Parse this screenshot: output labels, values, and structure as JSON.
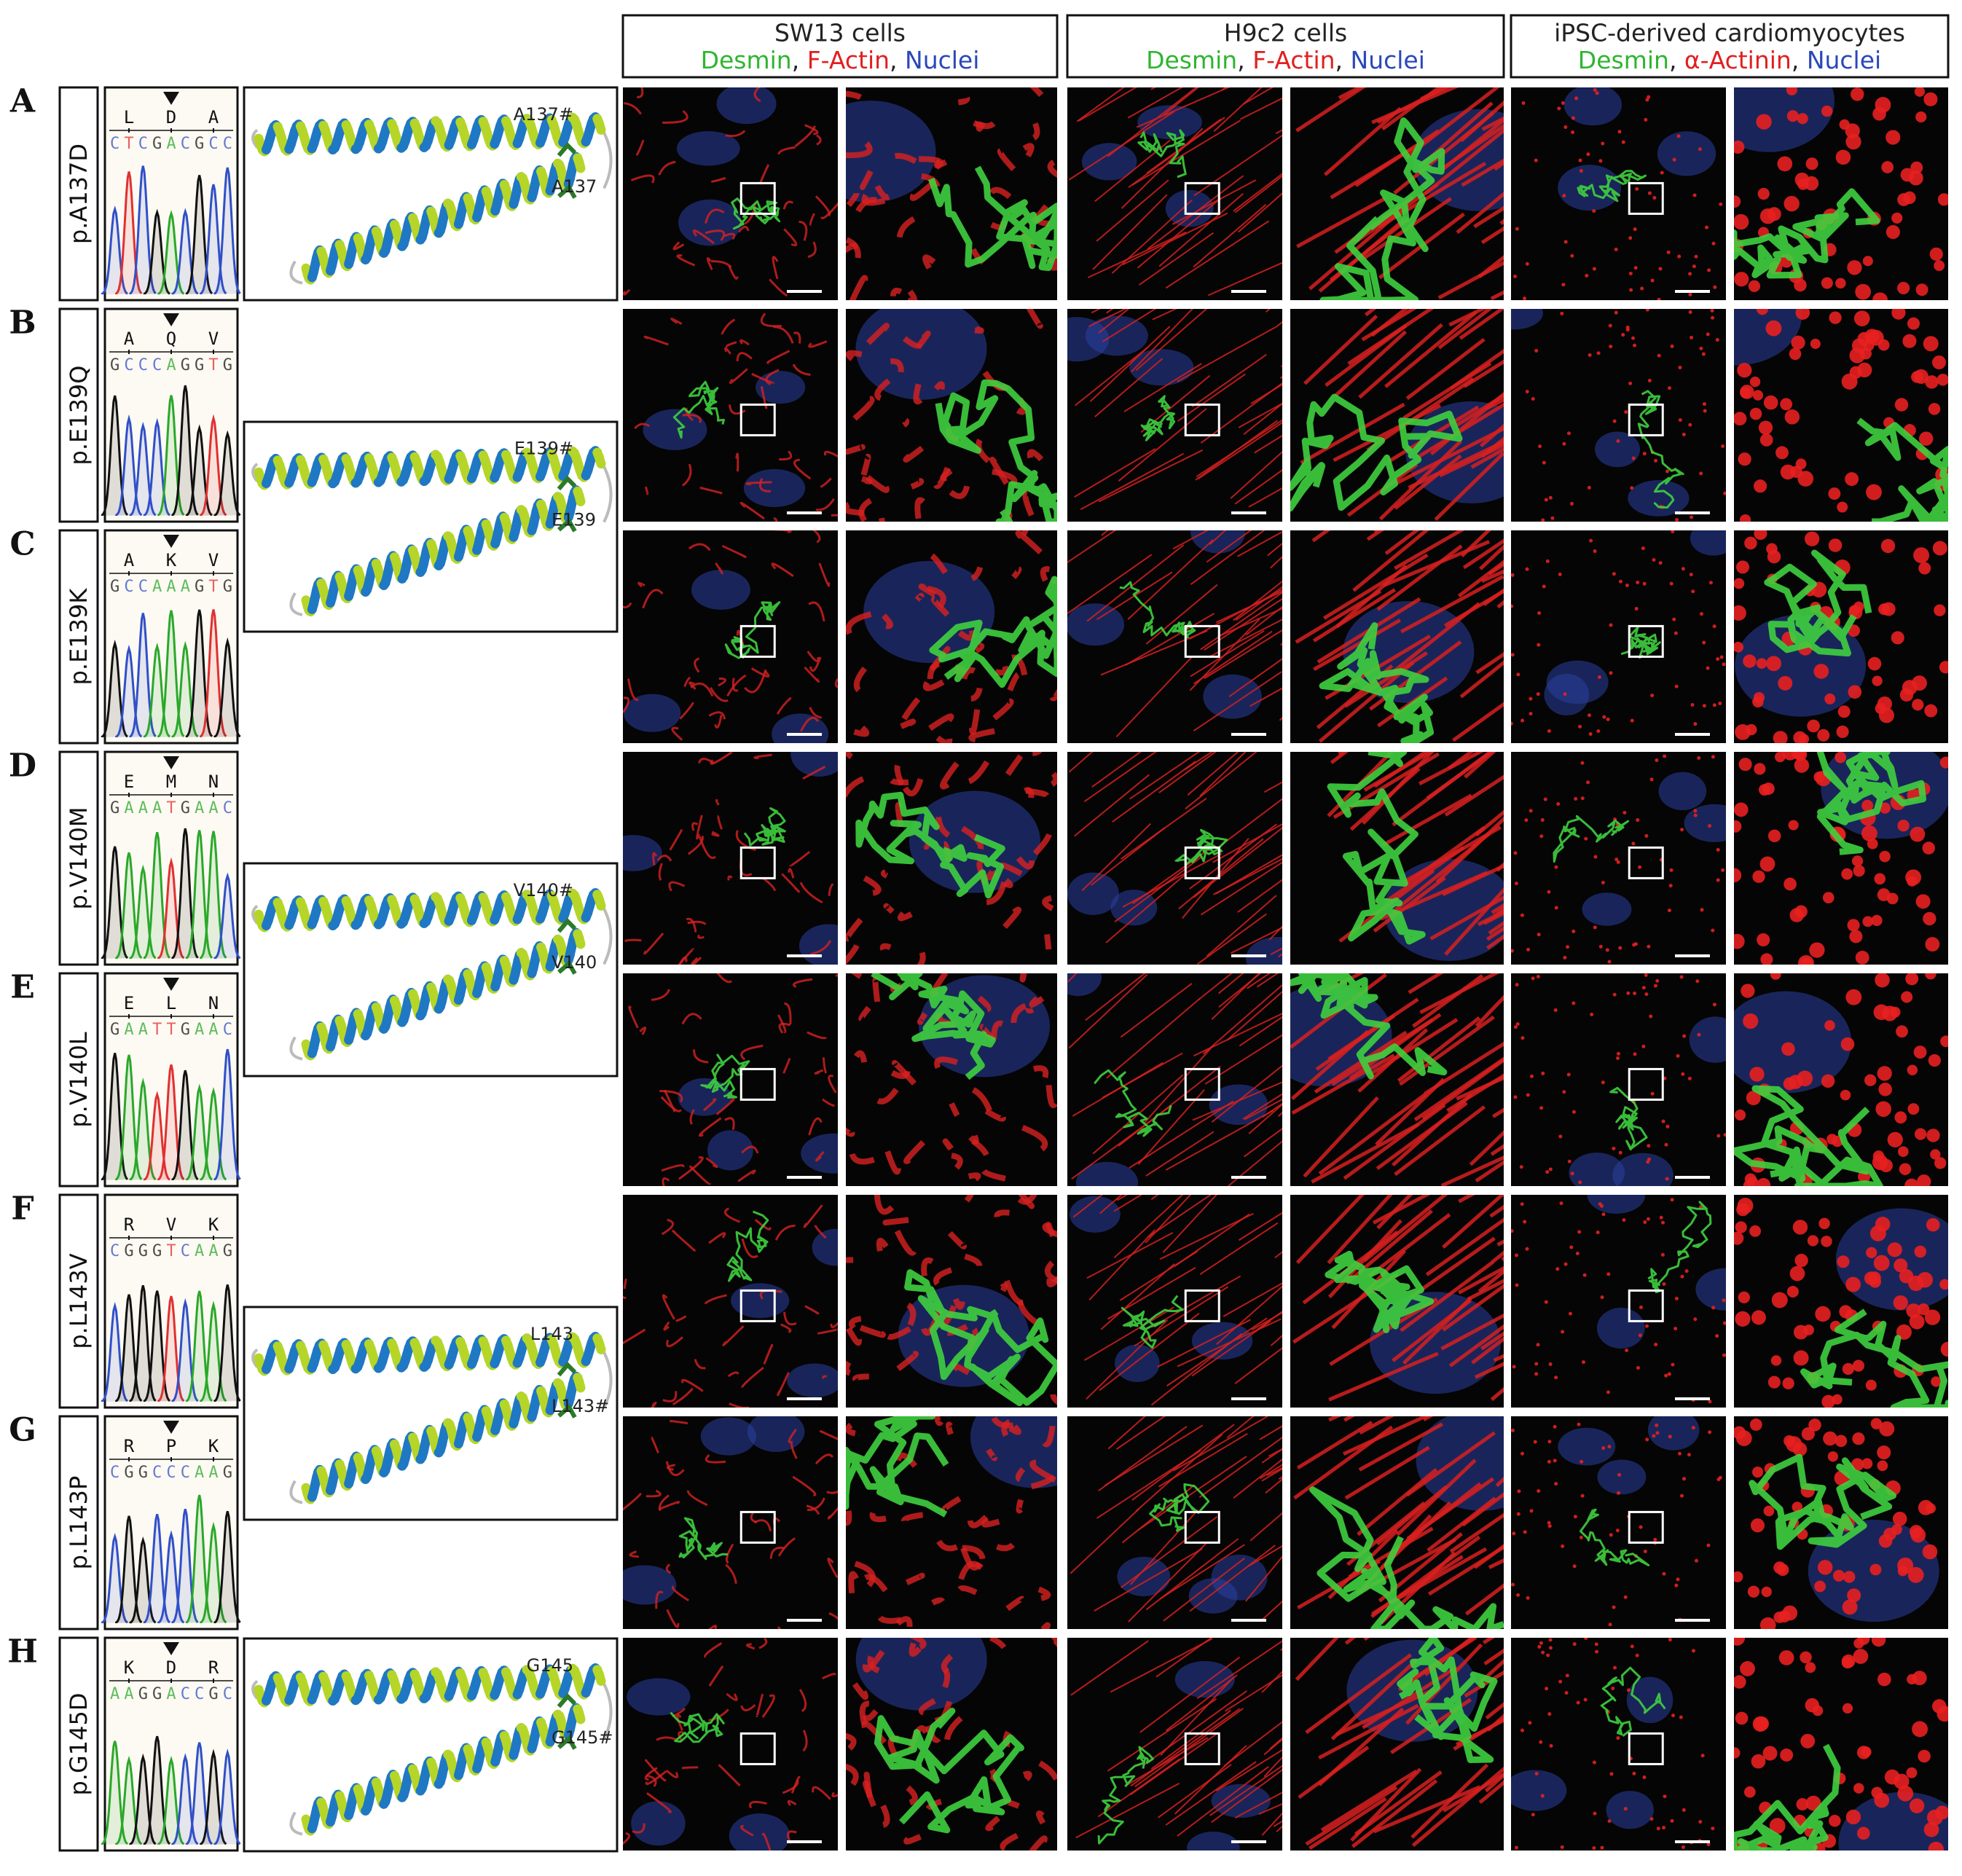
{
  "header": {
    "separator": ", ",
    "columns": [
      {
        "title": "SW13 cells",
        "stains": [
          {
            "name": "Desmin",
            "color": "#2fb52f"
          },
          {
            "name": "F-Actin",
            "color": "#e02020"
          },
          {
            "name": "Nuclei",
            "color": "#2a48b8"
          }
        ]
      },
      {
        "title": "H9c2 cells",
        "stains": [
          {
            "name": "Desmin",
            "color": "#2fb52f"
          },
          {
            "name": "F-Actin",
            "color": "#e02020"
          },
          {
            "name": "Nuclei",
            "color": "#2a48b8"
          }
        ]
      },
      {
        "title": "iPSC-derived cardiomyocytes",
        "stains": [
          {
            "name": "Desmin",
            "color": "#2fb52f"
          },
          {
            "name": "α-Actinin",
            "color": "#e02020"
          },
          {
            "name": "Nuclei",
            "color": "#2a48b8"
          }
        ]
      }
    ]
  },
  "rows": [
    {
      "letter": "A",
      "mutation": "p.A137D",
      "amino_acids": [
        "L",
        "D",
        "A"
      ],
      "sequence": [
        "C",
        "T",
        "C",
        "G",
        "A",
        "C",
        "G",
        "C",
        "C"
      ],
      "marked": true
    },
    {
      "letter": "B",
      "mutation": "p.E139Q",
      "amino_acids": [
        "A",
        "Q",
        "V"
      ],
      "sequence": [
        "G",
        "C",
        "C",
        "C",
        "A",
        "G",
        "G",
        "T",
        "G"
      ],
      "marked": true
    },
    {
      "letter": "C",
      "mutation": "p.E139K",
      "amino_acids": [
        "A",
        "K",
        "V"
      ],
      "sequence": [
        "G",
        "C",
        "C",
        "A",
        "A",
        "A",
        "G",
        "T",
        "G"
      ],
      "marked": true
    },
    {
      "letter": "D",
      "mutation": "p.V140M",
      "amino_acids": [
        "E",
        "M",
        "N"
      ],
      "sequence": [
        "G",
        "A",
        "A",
        "A",
        "T",
        "G",
        "A",
        "A",
        "C"
      ],
      "marked": true
    },
    {
      "letter": "E",
      "mutation": "p.V140L",
      "amino_acids": [
        "E",
        "L",
        "N"
      ],
      "sequence": [
        "G",
        "A",
        "A",
        "T",
        "T",
        "G",
        "A",
        "A",
        "C"
      ],
      "marked": true
    },
    {
      "letter": "F",
      "mutation": "p.L143V",
      "amino_acids": [
        "R",
        "V",
        "K"
      ],
      "sequence": [
        "C",
        "G",
        "G",
        "G",
        "T",
        "C",
        "A",
        "A",
        "G"
      ],
      "marked": false
    },
    {
      "letter": "G",
      "mutation": "p.L143P",
      "amino_acids": [
        "R",
        "P",
        "K"
      ],
      "sequence": [
        "C",
        "G",
        "G",
        "C",
        "C",
        "C",
        "A",
        "A",
        "G"
      ],
      "marked": true
    },
    {
      "letter": "H",
      "mutation": "p.G145D",
      "amino_acids": [
        "K",
        "D",
        "R"
      ],
      "sequence": [
        "A",
        "A",
        "G",
        "G",
        "A",
        "C",
        "C",
        "G",
        "C"
      ],
      "marked": true
    }
  ],
  "structures": [
    {
      "labels": [
        "A137#",
        "A137"
      ]
    },
    {
      "labels": [
        "E139#",
        "E139"
      ]
    },
    {
      "labels": [
        "V140#",
        "V140"
      ]
    },
    {
      "labels": [
        "L143",
        "L143#"
      ]
    },
    {
      "labels": [
        "G145",
        "G145#"
      ]
    }
  ]
}
